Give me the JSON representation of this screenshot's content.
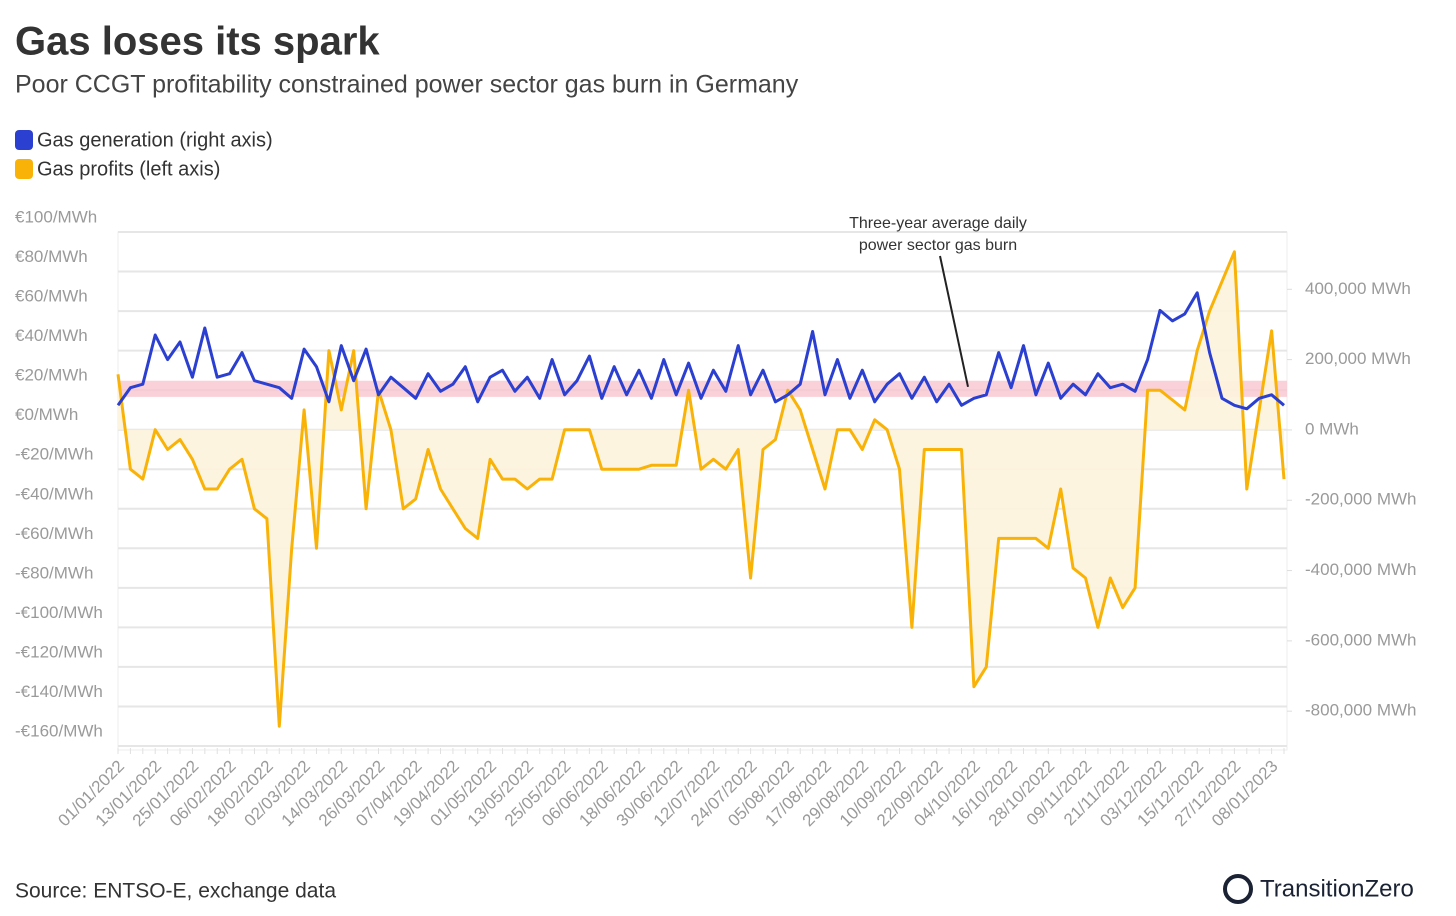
{
  "chart_data": {
    "type": "line",
    "title": "Gas loses its spark",
    "subtitle": "Poor CCGT profitability constrained power sector gas burn in Germany",
    "source": "Source: ENTSO-E, exchange data",
    "brand": "TransitionZero",
    "annotation": [
      "Three-year average daily",
      "power sector gas burn"
    ],
    "reference_band": {
      "axis": "y2",
      "color": "#f9c6cf",
      "range": [
        94000,
        140000
      ]
    },
    "x": [
      "01/01/2022",
      "05/01/2022",
      "09/01/2022",
      "13/01/2022",
      "17/01/2022",
      "21/01/2022",
      "25/01/2022",
      "29/01/2022",
      "02/02/2022",
      "06/02/2022",
      "10/02/2022",
      "14/02/2022",
      "18/02/2022",
      "22/02/2022",
      "26/02/2022",
      "02/03/2022",
      "06/03/2022",
      "10/03/2022",
      "14/03/2022",
      "18/03/2022",
      "22/03/2022",
      "26/03/2022",
      "30/03/2022",
      "03/04/2022",
      "07/04/2022",
      "11/04/2022",
      "15/04/2022",
      "19/04/2022",
      "23/04/2022",
      "27/04/2022",
      "01/05/2022",
      "05/05/2022",
      "09/05/2022",
      "13/05/2022",
      "17/05/2022",
      "21/05/2022",
      "25/05/2022",
      "29/05/2022",
      "02/06/2022",
      "06/06/2022",
      "10/06/2022",
      "14/06/2022",
      "18/06/2022",
      "22/06/2022",
      "26/06/2022",
      "30/06/2022",
      "04/07/2022",
      "08/07/2022",
      "12/07/2022",
      "16/07/2022",
      "20/07/2022",
      "24/07/2022",
      "28/07/2022",
      "01/08/2022",
      "05/08/2022",
      "09/08/2022",
      "13/08/2022",
      "17/08/2022",
      "21/08/2022",
      "25/08/2022",
      "29/08/2022",
      "02/09/2022",
      "06/09/2022",
      "10/09/2022",
      "14/09/2022",
      "18/09/2022",
      "22/09/2022",
      "26/09/2022",
      "30/09/2022",
      "04/10/2022",
      "08/10/2022",
      "12/10/2022",
      "16/10/2022",
      "20/10/2022",
      "24/10/2022",
      "28/10/2022",
      "01/11/2022",
      "05/11/2022",
      "09/11/2022",
      "13/11/2022",
      "17/11/2022",
      "21/11/2022",
      "25/11/2022",
      "29/11/2022",
      "03/12/2022",
      "07/12/2022",
      "11/12/2022",
      "15/12/2022",
      "19/12/2022",
      "23/12/2022",
      "27/12/2022",
      "31/12/2022",
      "04/01/2023",
      "08/01/2023",
      "12/01/2023"
    ],
    "series": [
      {
        "name": "Gas generation (right axis)",
        "color": "#2b3fd1",
        "axis": "y2",
        "values": [
          70000,
          120000,
          130000,
          270000,
          200000,
          250000,
          150000,
          290000,
          150000,
          160000,
          220000,
          140000,
          130000,
          120000,
          90000,
          230000,
          180000,
          80000,
          240000,
          140000,
          230000,
          100000,
          150000,
          120000,
          90000,
          160000,
          110000,
          130000,
          180000,
          80000,
          150000,
          170000,
          110000,
          150000,
          90000,
          200000,
          100000,
          140000,
          210000,
          90000,
          180000,
          100000,
          170000,
          90000,
          200000,
          100000,
          190000,
          90000,
          170000,
          110000,
          240000,
          100000,
          170000,
          80000,
          100000,
          130000,
          280000,
          100000,
          200000,
          90000,
          170000,
          80000,
          130000,
          160000,
          90000,
          150000,
          80000,
          130000,
          70000,
          90000,
          100000,
          220000,
          120000,
          240000,
          100000,
          190000,
          90000,
          130000,
          100000,
          160000,
          120000,
          130000,
          110000,
          200000,
          340000,
          310000,
          330000,
          390000,
          220000,
          90000,
          70000,
          60000,
          90000,
          100000,
          70000
        ]
      },
      {
        "name": "Gas profits (left axis)",
        "color": "#f9b208",
        "axis": "y",
        "fill": "#fdf3dc",
        "values": [
          28,
          -20,
          -25,
          0,
          -10,
          -5,
          -15,
          -30,
          -30,
          -20,
          -15,
          -40,
          -45,
          -150,
          -60,
          10,
          -60,
          40,
          10,
          40,
          -40,
          20,
          0,
          -40,
          -35,
          -10,
          -30,
          -40,
          -50,
          -55,
          -15,
          -25,
          -25,
          -30,
          -25,
          -25,
          0,
          0,
          0,
          -20,
          -20,
          -20,
          -20,
          -18,
          -18,
          -18,
          20,
          -20,
          -15,
          -20,
          -10,
          -75,
          -10,
          -5,
          20,
          10,
          -10,
          -30,
          0,
          0,
          -10,
          5,
          0,
          -20,
          -100,
          -10,
          -10,
          -10,
          -10,
          -130,
          -120,
          -55,
          -55,
          -55,
          -55,
          -60,
          -30,
          -70,
          -75,
          -100,
          -75,
          -90,
          -80,
          20,
          20,
          15,
          10,
          40,
          60,
          75,
          90,
          -30,
          10,
          50,
          -25
        ]
      }
    ],
    "ylim": [
      -160,
      100
    ],
    "yticks": [
      {
        "value": -160,
        "label": "-€160/MWh"
      },
      {
        "value": -140,
        "label": "-€140/MWh"
      },
      {
        "value": -120,
        "label": "-€120/MWh"
      },
      {
        "value": -100,
        "label": "-€100/MWh"
      },
      {
        "value": -80,
        "label": "-€80/MWh"
      },
      {
        "value": -60,
        "label": "-€60/MWh"
      },
      {
        "value": -40,
        "label": "-€40/MWh"
      },
      {
        "value": -20,
        "label": "-€20/MWh"
      },
      {
        "value": 0,
        "label": "€0/MWh"
      },
      {
        "value": 20,
        "label": "€20/MWh"
      },
      {
        "value": 40,
        "label": "€40/MWh"
      },
      {
        "value": 60,
        "label": "€60/MWh"
      },
      {
        "value": 80,
        "label": "€80/MWh"
      },
      {
        "value": 100,
        "label": "€100/MWh"
      }
    ],
    "y2lim": [
      -899000,
      563000
    ],
    "y2ticks": [
      {
        "value": -800000,
        "label": "-800,000 MWh"
      },
      {
        "value": -600000,
        "label": "-600,000 MWh"
      },
      {
        "value": -400000,
        "label": "-400,000 MWh"
      },
      {
        "value": -200000,
        "label": "-200,000 MWh"
      },
      {
        "value": 0,
        "label": "0 MWh"
      },
      {
        "value": 200000,
        "label": "200,000 MWh"
      },
      {
        "value": 400000,
        "label": "400,000 MWh"
      }
    ],
    "xtick_every": 3,
    "grid": true
  }
}
